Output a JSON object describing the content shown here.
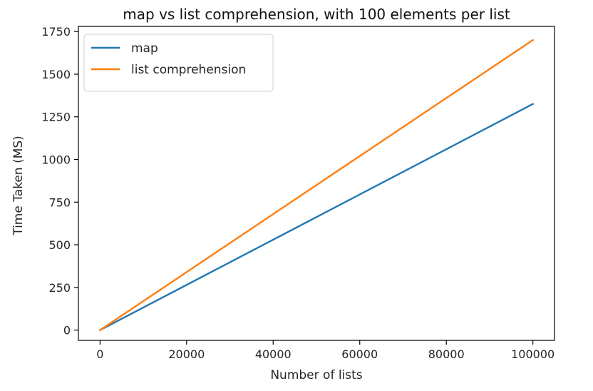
{
  "chart_data": {
    "type": "line",
    "title": "map vs list comprehension, with 100 elements per list",
    "xlabel": "Number of lists",
    "ylabel": "Time Taken (MS)",
    "xlim": [
      -5000,
      105000
    ],
    "ylim": [
      -60,
      1780
    ],
    "xticks": [
      0,
      20000,
      40000,
      60000,
      80000,
      100000
    ],
    "yticks": [
      0,
      250,
      500,
      750,
      1000,
      1250,
      1500,
      1750
    ],
    "legend_position": "top-left",
    "grid": false,
    "series": [
      {
        "name": "map",
        "color": "#1f77b4",
        "x": [
          0,
          100000
        ],
        "y": [
          0,
          1325
        ]
      },
      {
        "name": "list comprehension",
        "color": "#ff7f0e",
        "x": [
          0,
          100000
        ],
        "y": [
          0,
          1700
        ]
      }
    ]
  }
}
